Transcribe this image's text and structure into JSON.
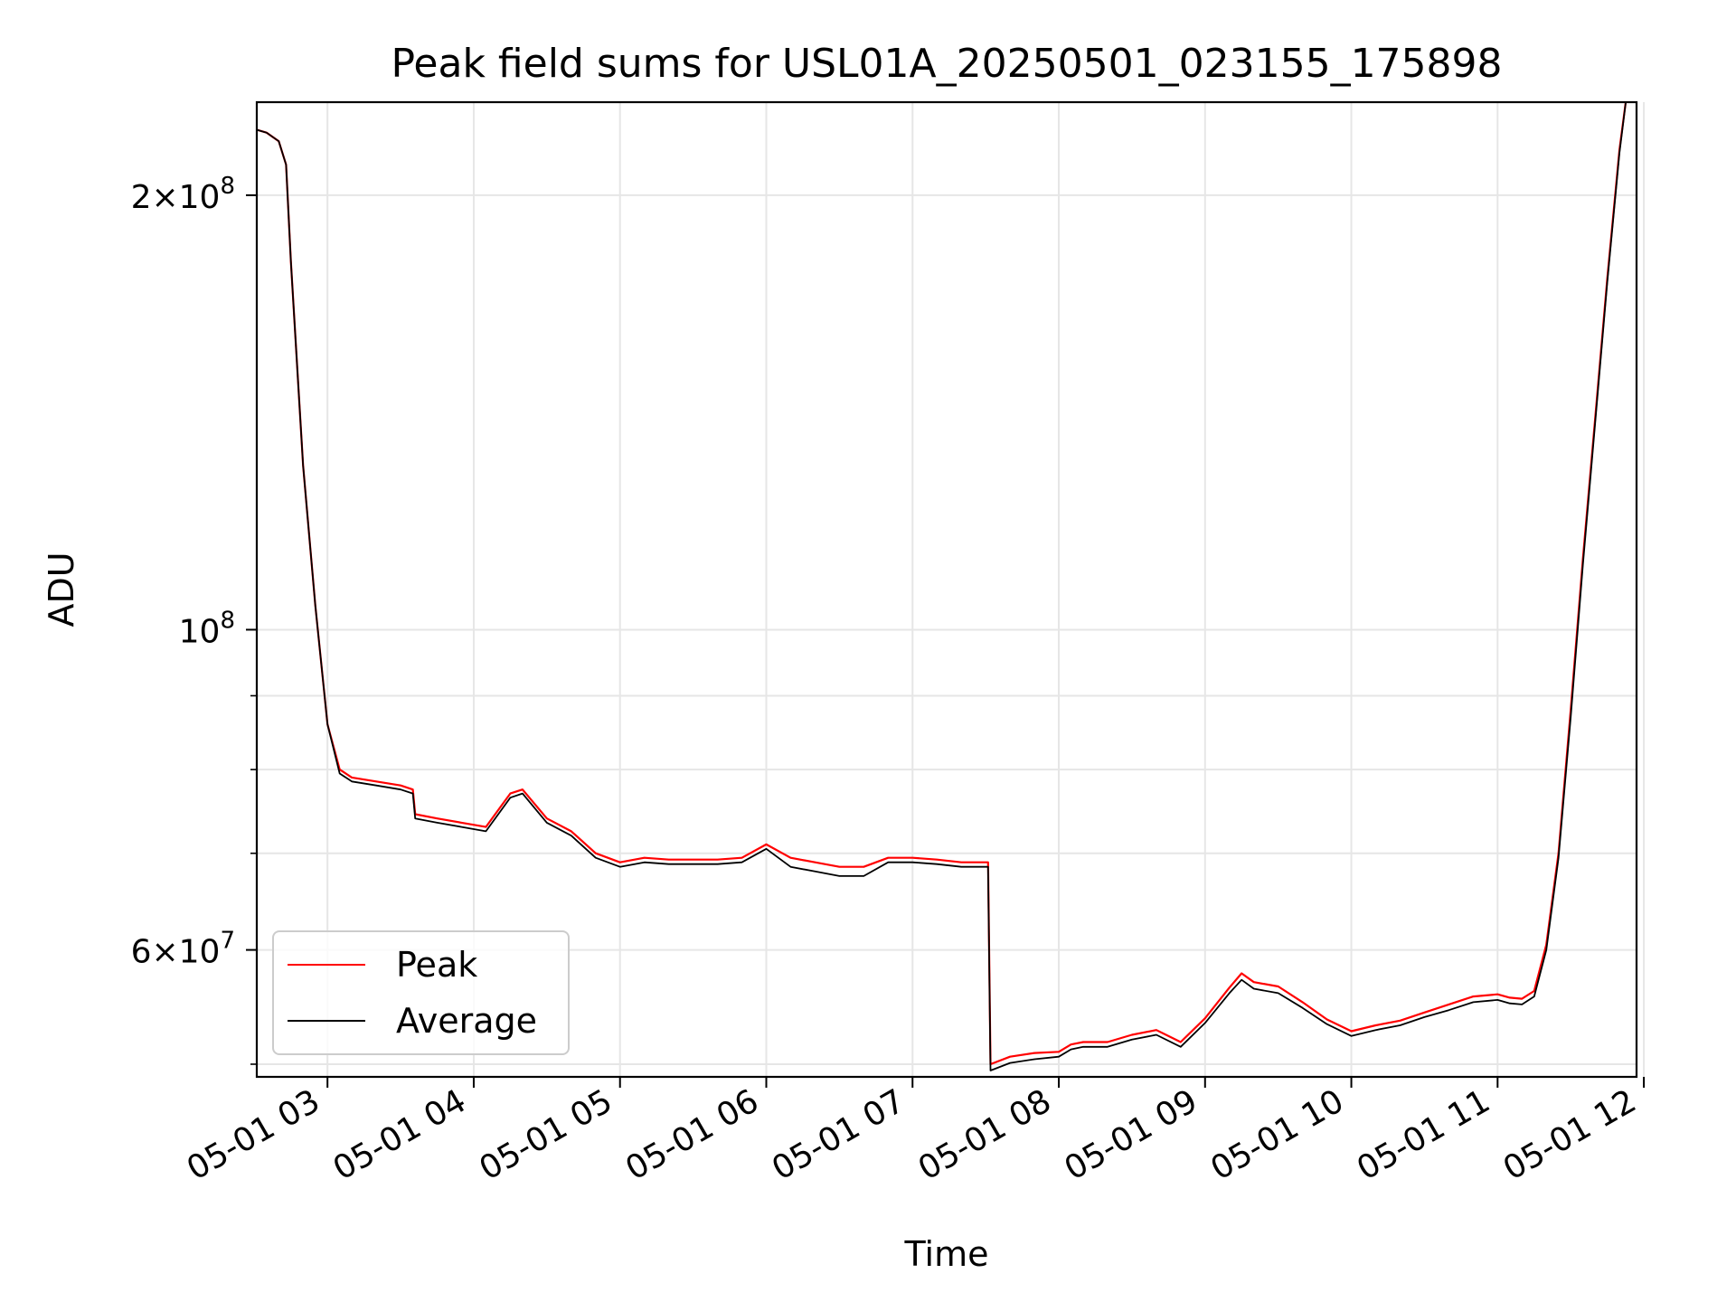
{
  "chart_data": {
    "type": "line",
    "title": "Peak field sums for USL01A_20250501_023155_175898",
    "xlabel": "Time",
    "ylabel": "ADU",
    "yscale": "log",
    "grid": true,
    "legend_position": "lower-left",
    "x_range": [
      "05-01 02:31",
      "05-01 11:57"
    ],
    "y_range": [
      49000000,
      232000000
    ],
    "x_ticks": [
      "05-01 03",
      "05-01 04",
      "05-01 05",
      "05-01 06",
      "05-01 07",
      "05-01 08",
      "05-01 09",
      "05-01 10",
      "05-01 11",
      "05-01 12"
    ],
    "y_major_ticks": [
      {
        "value": 100000000,
        "base": "10",
        "exp": "8",
        "mantissa": ""
      },
      {
        "value": 60000000,
        "base": "10",
        "exp": "7",
        "mantissa": "6"
      },
      {
        "value": 200000000,
        "base": "10",
        "exp": "8",
        "mantissa": "2"
      }
    ],
    "y_minor_ticks": [
      50000000,
      70000000,
      80000000,
      90000000
    ],
    "x": [
      "05-01 02:31",
      "05-01 02:35",
      "05-01 02:40",
      "05-01 02:43",
      "05-01 02:45",
      "05-01 02:50",
      "05-01 02:55",
      "05-01 03:00",
      "05-01 03:05",
      "05-01 03:10",
      "05-01 03:20",
      "05-01 03:30",
      "05-01 03:35",
      "05-01 03:36",
      "05-01 03:45",
      "05-01 03:55",
      "05-01 04:05",
      "05-01 04:15",
      "05-01 04:20",
      "05-01 04:30",
      "05-01 04:40",
      "05-01 04:50",
      "05-01 05:00",
      "05-01 05:10",
      "05-01 05:20",
      "05-01 05:40",
      "05-01 05:50",
      "05-01 06:00",
      "05-01 06:10",
      "05-01 06:20",
      "05-01 06:30",
      "05-01 06:40",
      "05-01 06:50",
      "05-01 07:00",
      "05-01 07:10",
      "05-01 07:20",
      "05-01 07:31",
      "05-01 07:32",
      "05-01 07:40",
      "05-01 07:50",
      "05-01 08:00",
      "05-01 08:05",
      "05-01 08:10",
      "05-01 08:20",
      "05-01 08:30",
      "05-01 08:40",
      "05-01 08:50",
      "05-01 09:00",
      "05-01 09:10",
      "05-01 09:15",
      "05-01 09:20",
      "05-01 09:30",
      "05-01 09:40",
      "05-01 09:50",
      "05-01 10:00",
      "05-01 10:10",
      "05-01 10:20",
      "05-01 10:30",
      "05-01 10:40",
      "05-01 10:50",
      "05-01 11:00",
      "05-01 11:05",
      "05-01 11:10",
      "05-01 11:15",
      "05-01 11:20",
      "05-01 11:25",
      "05-01 11:30",
      "05-01 11:35",
      "05-01 11:40",
      "05-01 11:45",
      "05-01 11:50",
      "05-01 11:53",
      "05-01 11:55",
      "05-01 11:57"
    ],
    "series": [
      {
        "name": "Peak",
        "color": "#ff0000",
        "values": [
          222000000,
          221000000,
          218000000,
          210000000,
          180000000,
          130000000,
          104000000,
          86000000,
          80000000,
          79000000,
          78500000,
          78000000,
          77500000,
          74500000,
          74000000,
          73500000,
          73000000,
          77000000,
          77500000,
          74000000,
          72500000,
          70000000,
          69000000,
          69500000,
          69300000,
          69300000,
          69500000,
          71000000,
          69500000,
          69000000,
          68500000,
          68500000,
          69500000,
          69500000,
          69300000,
          69000000,
          69000000,
          50000000,
          50600000,
          50900000,
          51000000,
          51600000,
          51800000,
          51800000,
          52400000,
          52800000,
          51800000,
          53800000,
          56500000,
          57800000,
          57000000,
          56600000,
          55200000,
          53700000,
          52700000,
          53200000,
          53600000,
          54300000,
          55000000,
          55700000,
          55900000,
          55600000,
          55500000,
          56200000,
          60500000,
          70000000,
          88000000,
          112000000,
          140000000,
          175000000,
          215000000,
          235000000,
          240000000,
          240000000
        ]
      },
      {
        "name": "Average",
        "color": "#000000",
        "values": [
          222000000,
          221000000,
          218000000,
          210000000,
          180000000,
          130000000,
          104000000,
          86000000,
          79500000,
          78500000,
          78000000,
          77500000,
          77000000,
          74000000,
          73500000,
          73000000,
          72500000,
          76500000,
          77000000,
          73500000,
          72000000,
          69500000,
          68500000,
          69000000,
          68800000,
          68800000,
          69000000,
          70500000,
          68500000,
          68000000,
          67500000,
          67500000,
          69000000,
          69000000,
          68800000,
          68500000,
          68500000,
          49500000,
          50100000,
          50400000,
          50600000,
          51200000,
          51400000,
          51400000,
          52000000,
          52400000,
          51400000,
          53400000,
          56000000,
          57200000,
          56400000,
          56000000,
          54700000,
          53300000,
          52300000,
          52800000,
          53200000,
          53900000,
          54500000,
          55200000,
          55400000,
          55100000,
          55000000,
          55700000,
          60000000,
          69500000,
          87000000,
          111000000,
          139000000,
          174000000,
          214000000,
          235000000,
          240000000,
          240000000
        ]
      }
    ]
  }
}
